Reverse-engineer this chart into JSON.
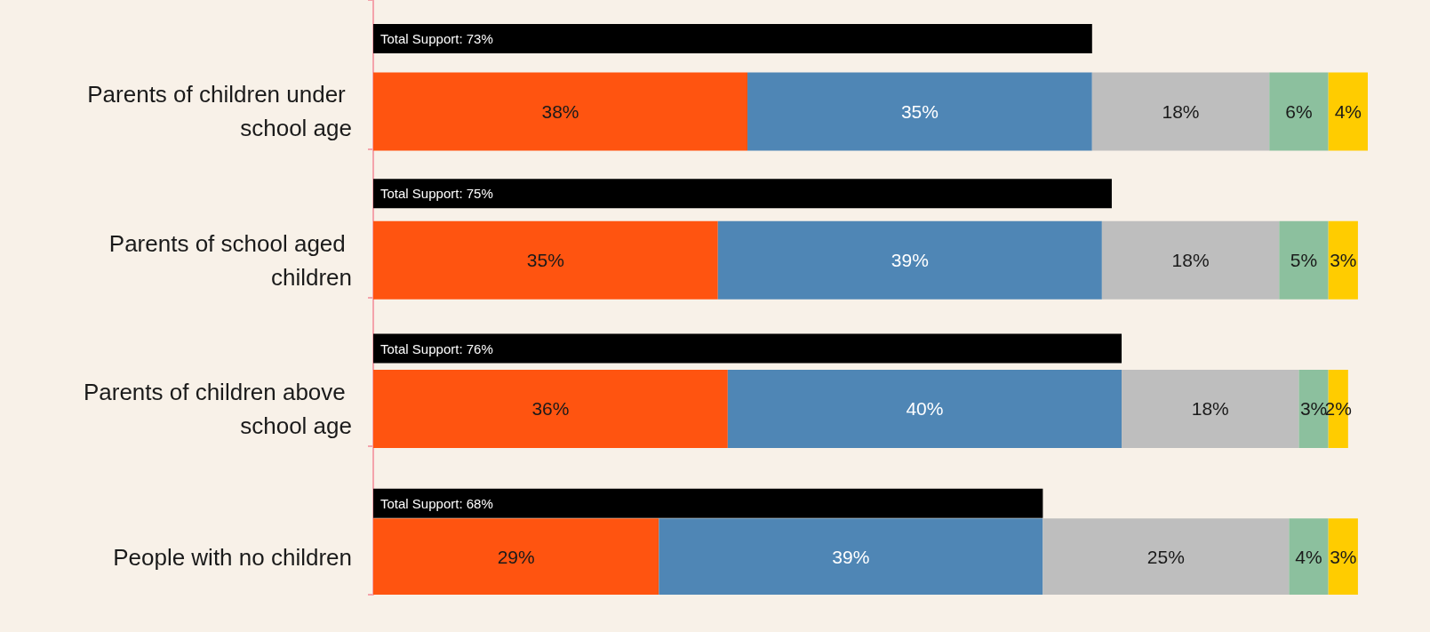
{
  "chart_data": {
    "type": "bar",
    "orientation": "horizontal",
    "stacked": true,
    "categories": [
      null,
      "Parents of children under school age",
      null,
      "Parents of school aged children",
      null,
      "Parents of children above school age",
      null,
      "People with no children"
    ],
    "series": [
      {
        "color": "#000000",
        "values": [
          73,
          null,
          75,
          null,
          76,
          null,
          68,
          null
        ],
        "value_labels": [
          "Total Support: 73%",
          null,
          "Total Support: 75%",
          null,
          "Total Support: 76%",
          null,
          "Total Support: 68%",
          null
        ]
      },
      {
        "color": "#ff5410",
        "values": [
          null,
          38,
          null,
          35,
          null,
          36,
          null,
          29
        ],
        "value_labels": [
          null,
          "38%",
          null,
          "35%",
          null,
          "36%",
          null,
          "29%"
        ]
      },
      {
        "color": "#4f86b5",
        "values": [
          null,
          35,
          null,
          39,
          null,
          40,
          null,
          39
        ],
        "value_labels": [
          null,
          "35%",
          null,
          "39%",
          null,
          "40%",
          null,
          "39%"
        ]
      },
      {
        "color": "#bebebe",
        "values": [
          null,
          18,
          null,
          18,
          null,
          18,
          null,
          25
        ],
        "value_labels": [
          null,
          "18%",
          null,
          "18%",
          null,
          "18%",
          null,
          "25%"
        ]
      },
      {
        "color": "#8cc09e",
        "values": [
          null,
          6,
          null,
          5,
          null,
          3,
          null,
          4
        ],
        "value_labels": [
          null,
          "6%",
          null,
          "5%",
          null,
          "3%",
          null,
          "4%"
        ]
      },
      {
        "color": "#ffcc00",
        "values": [
          null,
          4,
          null,
          3,
          null,
          2,
          null,
          3
        ],
        "value_labels": [
          null,
          "4%",
          null,
          "3%",
          null,
          "2%",
          null,
          "3%"
        ]
      }
    ]
  }
}
